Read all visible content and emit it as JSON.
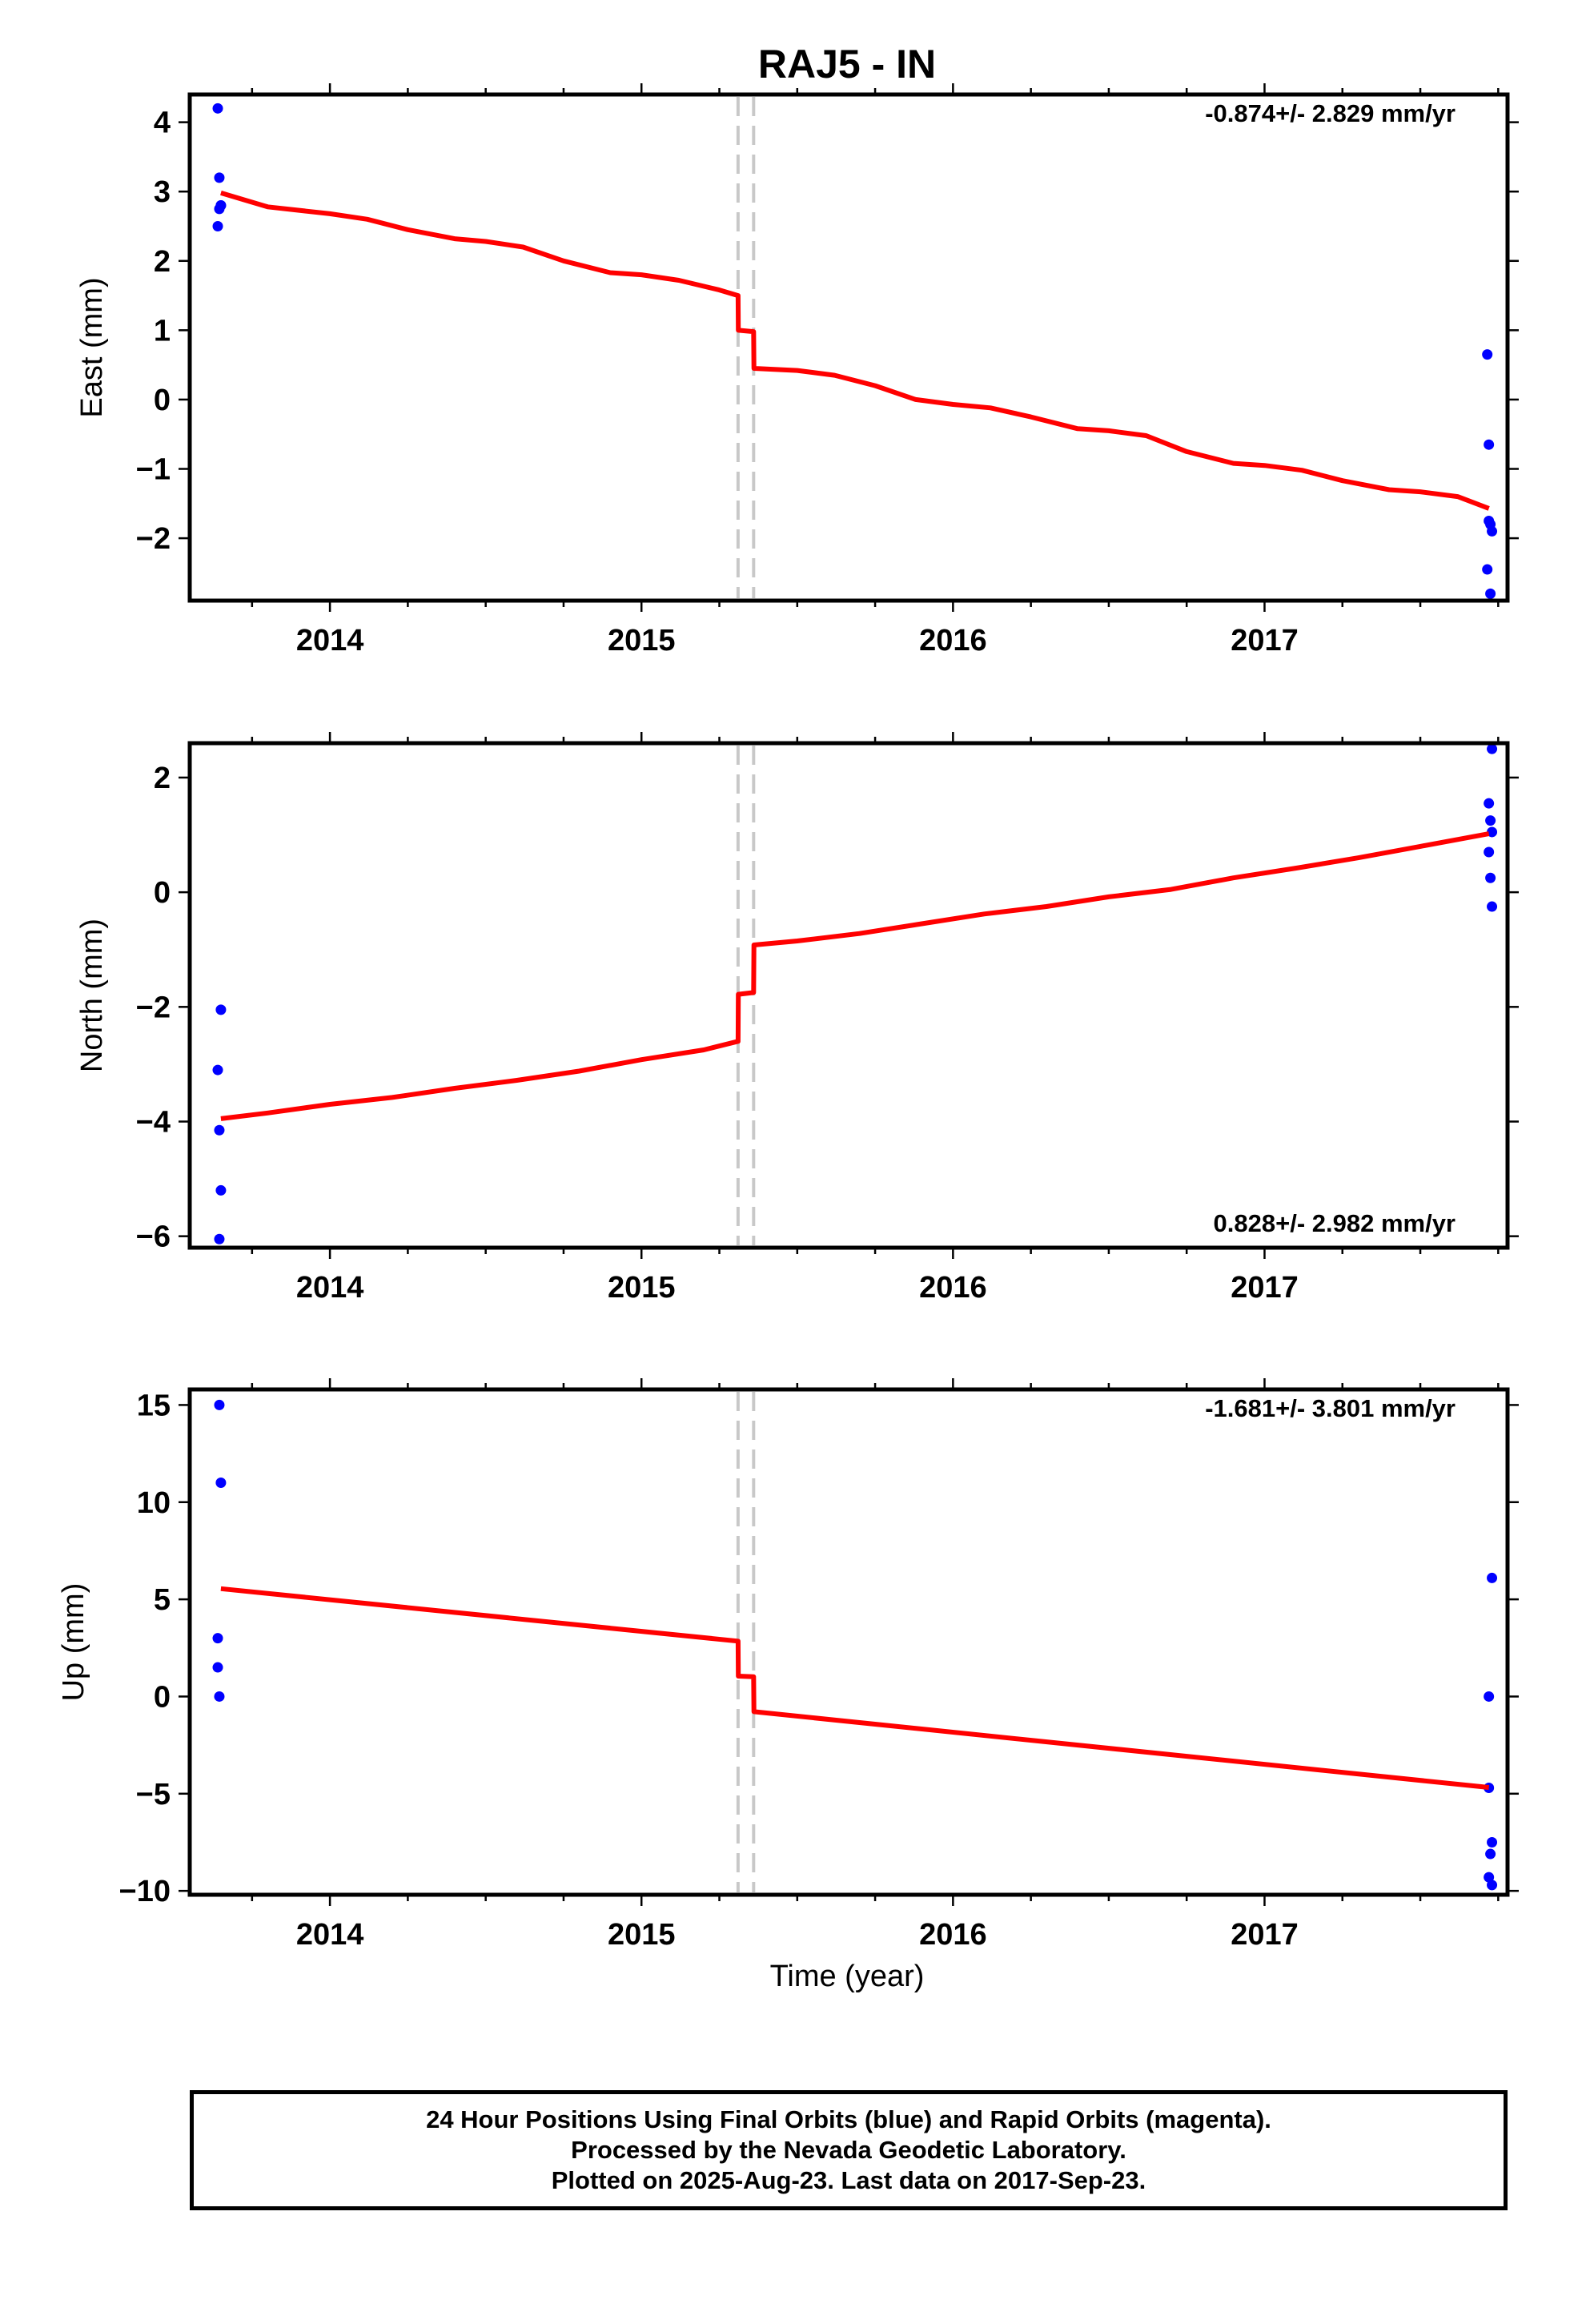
{
  "title": "RAJ5 - IN",
  "xlabel": "Time (year)",
  "colors": {
    "fit": "#ff0000",
    "final_orbits": "#0000ff",
    "offset_line": "#c8c8c8",
    "axes": "#000000"
  },
  "chart_data": [
    {
      "type": "scatter",
      "panel": "east",
      "ylabel": "East (mm)",
      "rate_label": "-0.874+/- 2.829 mm/yr",
      "rate_position": "top-right",
      "xlim": [
        2013.55,
        2017.78
      ],
      "ylim": [
        -2.9,
        4.4
      ],
      "x_ticks": [
        2014,
        2015,
        2016,
        2017
      ],
      "x_tick_labels": [
        "2014",
        "2015",
        "2016",
        "2017"
      ],
      "y_ticks": [
        -2,
        -1,
        0,
        1,
        2,
        3,
        4
      ],
      "y_tick_labels": [
        "−2",
        "−1",
        "0",
        "1",
        "2",
        "3",
        "4"
      ],
      "offset_epochs": [
        2015.31,
        2015.36
      ],
      "series": [
        {
          "name": "Final Orbits",
          "color": "#0000ff",
          "x": [
            2013.64,
            2013.645,
            2013.65,
            2013.645,
            2013.64,
            2013.65,
            2017.715,
            2017.72,
            2017.72,
            2017.725,
            2017.73,
            2017.715,
            2017.725
          ],
          "y": [
            4.2,
            3.2,
            2.8,
            2.75,
            2.5,
            2.8,
            0.65,
            -0.65,
            -1.75,
            -1.8,
            -1.9,
            -2.45,
            -2.8
          ]
        },
        {
          "type": "line",
          "color": "#ff0000",
          "x": [
            2013.65,
            2013.8,
            2014.0,
            2014.12,
            2014.25,
            2014.4,
            2014.5,
            2014.62,
            2014.75,
            2014.9,
            2015.0,
            2015.12,
            2015.25,
            2015.31,
            2015.311,
            2015.36,
            2015.361,
            2015.5,
            2015.62,
            2015.75,
            2015.88,
            2016.0,
            2016.12,
            2016.25,
            2016.4,
            2016.5,
            2016.62,
            2016.75,
            2016.9,
            2017.0,
            2017.12,
            2017.25,
            2017.4,
            2017.5,
            2017.62,
            2017.72
          ],
          "y": [
            2.98,
            2.78,
            2.68,
            2.6,
            2.45,
            2.32,
            2.28,
            2.2,
            2.0,
            1.83,
            1.8,
            1.72,
            1.58,
            1.5,
            1.0,
            0.98,
            0.45,
            0.42,
            0.35,
            0.2,
            0.0,
            -0.07,
            -0.12,
            -0.25,
            -0.42,
            -0.45,
            -0.52,
            -0.75,
            -0.92,
            -0.95,
            -1.02,
            -1.17,
            -1.3,
            -1.33,
            -1.4,
            -1.57
          ]
        }
      ]
    },
    {
      "type": "scatter",
      "panel": "north",
      "ylabel": "North (mm)",
      "rate_label": "0.828+/- 2.982 mm/yr",
      "rate_position": "bottom-right",
      "xlim": [
        2013.55,
        2017.78
      ],
      "ylim": [
        -6.2,
        2.6
      ],
      "x_ticks": [
        2014,
        2015,
        2016,
        2017
      ],
      "x_tick_labels": [
        "2014",
        "2015",
        "2016",
        "2017"
      ],
      "y_ticks": [
        -6,
        -4,
        -2,
        0,
        2
      ],
      "y_tick_labels": [
        "−6",
        "−4",
        "−2",
        "0",
        "2"
      ],
      "offset_epochs": [
        2015.31,
        2015.36
      ],
      "series": [
        {
          "name": "Final Orbits",
          "color": "#0000ff",
          "x": [
            2013.65,
            2013.64,
            2013.645,
            2013.65,
            2013.645,
            2017.73,
            2017.72,
            2017.725,
            2017.73,
            2017.72,
            2017.725,
            2017.73
          ],
          "y": [
            -2.05,
            -3.1,
            -4.15,
            -5.2,
            -6.05,
            2.5,
            1.55,
            1.25,
            1.05,
            0.7,
            0.25,
            -0.25
          ]
        },
        {
          "type": "line",
          "color": "#ff0000",
          "x": [
            2013.65,
            2013.8,
            2014.0,
            2014.2,
            2014.4,
            2014.6,
            2014.8,
            2015.0,
            2015.2,
            2015.31,
            2015.311,
            2015.36,
            2015.361,
            2015.5,
            2015.7,
            2015.9,
            2016.1,
            2016.3,
            2016.5,
            2016.7,
            2016.9,
            2017.1,
            2017.3,
            2017.5,
            2017.72
          ],
          "y": [
            -3.95,
            -3.85,
            -3.7,
            -3.58,
            -3.42,
            -3.28,
            -3.12,
            -2.92,
            -2.75,
            -2.6,
            -1.78,
            -1.75,
            -0.92,
            -0.85,
            -0.72,
            -0.55,
            -0.38,
            -0.25,
            -0.08,
            0.05,
            0.25,
            0.42,
            0.6,
            0.8,
            1.02
          ]
        }
      ]
    },
    {
      "type": "scatter",
      "panel": "up",
      "ylabel": "Up (mm)",
      "rate_label": "-1.681+/- 3.801 mm/yr",
      "rate_position": "top-right",
      "xlim": [
        2013.55,
        2017.78
      ],
      "ylim": [
        -10.2,
        15.8
      ],
      "x_ticks": [
        2014,
        2015,
        2016,
        2017
      ],
      "x_tick_labels": [
        "2014",
        "2015",
        "2016",
        "2017"
      ],
      "y_ticks": [
        -10,
        -5,
        0,
        5,
        10,
        15
      ],
      "y_tick_labels": [
        "−10",
        "−5",
        "0",
        "5",
        "10",
        "15"
      ],
      "offset_epochs": [
        2015.31,
        2015.36
      ],
      "series": [
        {
          "name": "Final Orbits",
          "color": "#0000ff",
          "x": [
            2013.645,
            2013.65,
            2013.64,
            2013.64,
            2013.645,
            2017.73,
            2017.72,
            2017.72,
            2017.73,
            2017.725,
            2017.72,
            2017.73
          ],
          "y": [
            15.0,
            11.0,
            3.0,
            1.5,
            0.0,
            6.1,
            0.0,
            -4.7,
            -7.5,
            -8.1,
            -9.3,
            -9.7
          ]
        },
        {
          "type": "line",
          "color": "#ff0000",
          "x": [
            2013.65,
            2015.31,
            2015.311,
            2015.36,
            2015.361,
            2017.72
          ],
          "y": [
            5.55,
            2.85,
            1.05,
            1.02,
            -0.78,
            -4.68
          ]
        }
      ]
    }
  ],
  "footer": {
    "line1": "24 Hour Positions Using Final Orbits (blue) and Rapid Orbits (magenta).",
    "line2": "Processed by the Nevada Geodetic Laboratory.",
    "line3": "Plotted on 2025-Aug-23. Last data on 2017-Sep-23."
  }
}
